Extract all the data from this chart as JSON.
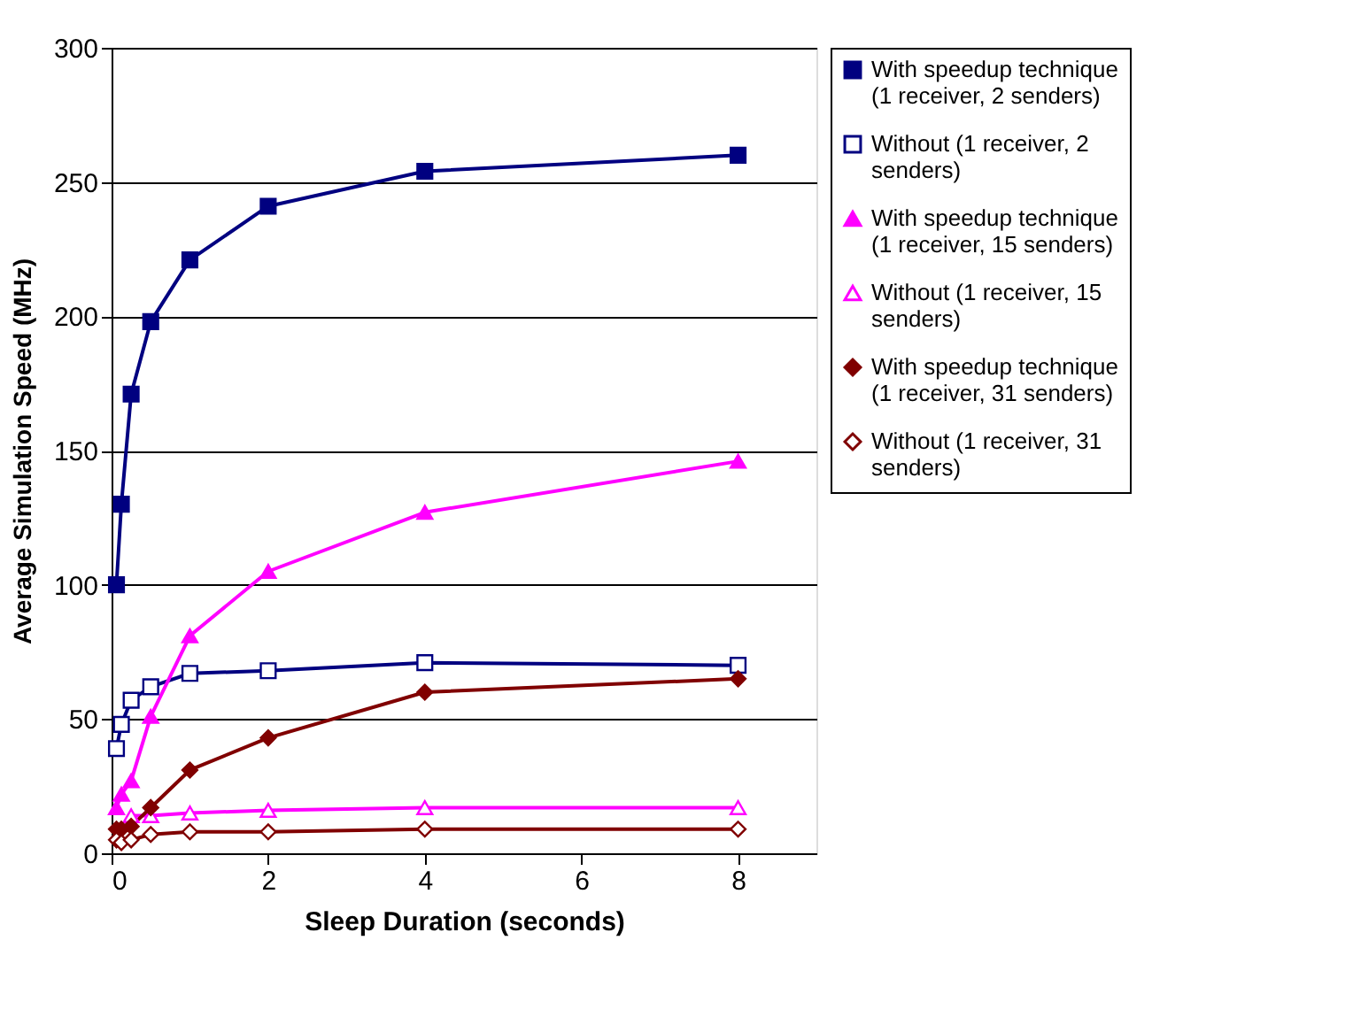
{
  "chart_data": {
    "type": "line",
    "xlabel": "Sleep Duration (seconds)",
    "ylabel": "Average Simulation Speed (MHz)",
    "x": [
      0.0625,
      0.125,
      0.25,
      0.5,
      1,
      2,
      4,
      8
    ],
    "xlim": [
      0,
      9
    ],
    "xticks": [
      0,
      2,
      4,
      6,
      8
    ],
    "ylim": [
      0,
      300
    ],
    "yticks": [
      0,
      50,
      100,
      150,
      200,
      250,
      300
    ],
    "grid": "y",
    "legend": "right",
    "series": [
      {
        "name": "With speedup technique (1 receiver, 2 senders)",
        "color": "#000080",
        "marker": "square",
        "values": [
          100,
          130,
          171,
          198,
          221,
          241,
          254,
          260
        ]
      },
      {
        "name": "Without (1 receiver, 2 senders)",
        "color": "#000080",
        "marker": "square",
        "values": [
          39,
          48,
          57,
          62,
          67,
          68,
          71,
          70
        ]
      },
      {
        "name": "With speedup technique (1 receiver, 15 senders)",
        "color": "#ff00ff",
        "marker": "triangle",
        "values": [
          17,
          22,
          27,
          51,
          81,
          105,
          127,
          146
        ]
      },
      {
        "name": "Without (1 receiver, 15 senders)",
        "color": "#ff00ff",
        "marker": "triangle",
        "values": [
          null,
          null,
          14,
          14,
          15,
          16,
          17,
          17
        ]
      },
      {
        "name": "With speedup technique (1 receiver, 31 senders)",
        "color": "#800000",
        "marker": "diamond",
        "values": [
          9,
          9,
          10,
          17,
          31,
          43,
          60,
          65
        ]
      },
      {
        "name": "Without (1 receiver, 31 senders)",
        "color": "#800000",
        "marker": "diamond",
        "values": [
          5,
          4,
          5,
          7,
          8,
          8,
          9,
          9
        ]
      }
    ]
  }
}
